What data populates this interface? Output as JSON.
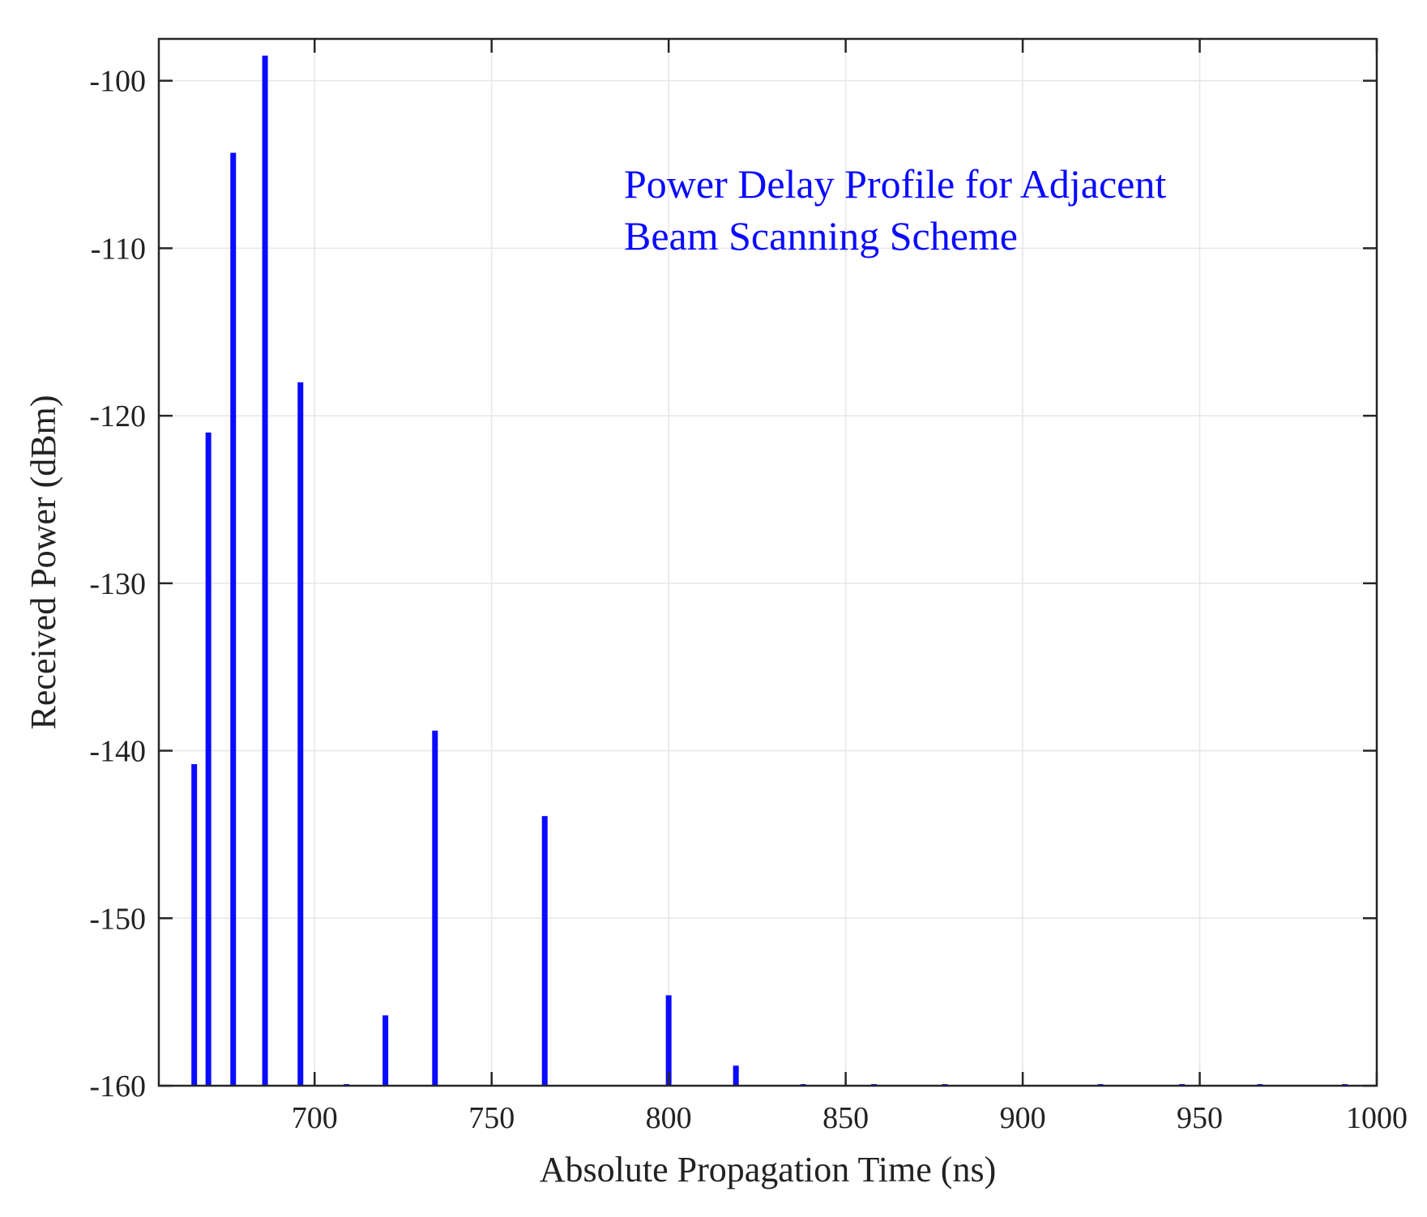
{
  "chart_data": {
    "type": "bar",
    "title": "",
    "xlabel": "Absolute Propagation Time (ns)",
    "ylabel": "Received Power (dBm)",
    "xlim": [
      656,
      1000
    ],
    "ylim": [
      -160,
      -97.5
    ],
    "xticks": [
      700,
      750,
      800,
      850,
      900,
      950,
      1000
    ],
    "yticks": [
      -100,
      -110,
      -120,
      -130,
      -140,
      -150,
      -160
    ],
    "grid": true,
    "baseline": -160,
    "bar_color": "#0a0aff",
    "annotation": {
      "lines": [
        "Power Delay Profile for Adjacent",
        "Beam Scanning Scheme"
      ],
      "color": "#0a0aff"
    },
    "series": [
      {
        "x": [
          666,
          670,
          677,
          686,
          696,
          709,
          720,
          734,
          765,
          800,
          819,
          838,
          858,
          878,
          922,
          945,
          967,
          991
        ],
        "values": [
          -140.8,
          -121.0,
          -104.3,
          -98.5,
          -118.0,
          -160.0,
          -155.8,
          -138.8,
          -143.9,
          -154.6,
          -158.8,
          -160.0,
          -160.0,
          -160.0,
          -160.0,
          -160.0,
          -160.0,
          -160.0
        ]
      }
    ]
  }
}
